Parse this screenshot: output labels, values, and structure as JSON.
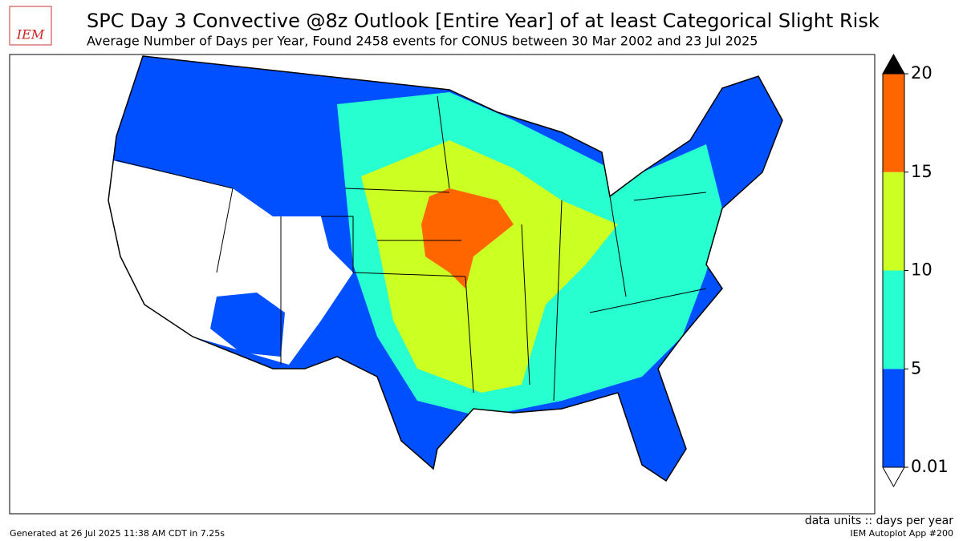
{
  "header": {
    "logo": "IEM",
    "title": "SPC Day 3 Convective @8z Outlook [Entire Year] of at least Categorical Slight Risk",
    "subtitle": "Average Number of Days per Year, Found 2458 events for CONUS between 30 Mar 2002 and 23 Jul 2025"
  },
  "colorbar": {
    "levels": [
      0.01,
      5,
      10,
      15,
      20
    ],
    "colors": [
      "#0050ff",
      "#28ffd0",
      "#ccff22",
      "#ff6600"
    ],
    "under": "#ffffff",
    "over": "#000000"
  },
  "footer": {
    "units": "data units :: days per year",
    "generated": "Generated at 26 Jul 2025 11:38 AM CDT in 7.25s",
    "app": "IEM Autoplot App #200"
  }
}
